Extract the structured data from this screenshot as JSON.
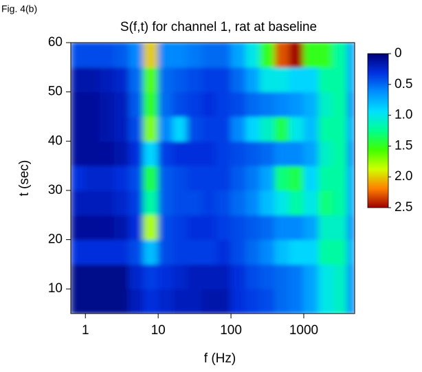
{
  "figure_label": "Fig. 4(b)",
  "chart_data": {
    "type": "heatmap",
    "title": "S(f,t) for channel 1, rat at baseline",
    "x_label": "f (Hz)",
    "y_label": "t (sec)",
    "x_scale": "log",
    "xlim": [
      0.63,
      5000
    ],
    "xticks": [
      1,
      10,
      100,
      1000
    ],
    "ylim": [
      5,
      60
    ],
    "yticks": [
      10,
      20,
      30,
      40,
      50,
      60
    ],
    "zlim": [
      0,
      2.5
    ],
    "zticks": [
      0,
      0.5,
      {
        "value": 1,
        "label": "1.0"
      },
      1.5,
      {
        "value": 2,
        "label": "2.0"
      },
      2.5
    ],
    "colormap": [
      "#00007a",
      "#0030e0",
      "#0090ff",
      "#00e0ff",
      "#00ff90",
      "#40ff00",
      "#d0ff00",
      "#ff8000",
      "#a00000"
    ],
    "x_edges": [
      0.63,
      1,
      1.6,
      2.5,
      4,
      6.3,
      10,
      16,
      25,
      40,
      63,
      100,
      160,
      250,
      400,
      630,
      1000,
      1600,
      2500,
      4000,
      5000
    ],
    "y_edges": [
      5,
      10,
      15,
      20,
      25,
      30,
      35,
      40,
      45,
      50,
      55,
      60
    ],
    "z": [
      [
        0.05,
        0.05,
        0.05,
        0.05,
        0.2,
        0.3,
        0.25,
        0.2,
        0.2,
        0.15,
        0.15,
        0.3,
        0.35,
        0.4,
        0.5,
        0.55,
        0.7,
        1.0,
        1.1,
        0.6
      ],
      [
        0.05,
        0.05,
        0.05,
        0.05,
        0.25,
        0.35,
        0.3,
        0.25,
        0.2,
        0.2,
        0.2,
        0.3,
        0.4,
        0.45,
        0.5,
        0.55,
        0.7,
        1.0,
        1.1,
        0.6
      ],
      [
        0.3,
        0.3,
        0.3,
        0.3,
        0.4,
        0.8,
        0.4,
        0.35,
        0.35,
        0.35,
        0.3,
        0.4,
        0.5,
        0.6,
        0.8,
        0.9,
        0.9,
        1.2,
        1.2,
        0.7
      ],
      [
        0.1,
        0.1,
        0.1,
        0.15,
        0.3,
        1.8,
        0.4,
        0.35,
        0.3,
        0.3,
        0.35,
        0.4,
        0.45,
        0.5,
        0.6,
        0.6,
        0.7,
        1.1,
        1.1,
        0.6
      ],
      [
        0.2,
        0.2,
        0.2,
        0.25,
        0.35,
        1.2,
        0.45,
        0.4,
        0.4,
        0.35,
        0.4,
        0.5,
        0.6,
        0.8,
        1.0,
        1.2,
        1.0,
        1.3,
        1.2,
        0.7
      ],
      [
        0.3,
        0.25,
        0.25,
        0.3,
        0.4,
        1.4,
        0.45,
        0.4,
        0.35,
        0.35,
        0.35,
        0.45,
        0.55,
        0.7,
        1.3,
        1.4,
        0.9,
        1.2,
        1.2,
        0.7
      ],
      [
        0.1,
        0.1,
        0.1,
        0.15,
        0.3,
        0.9,
        0.35,
        0.3,
        0.3,
        0.3,
        0.35,
        0.4,
        0.45,
        0.5,
        0.6,
        0.6,
        0.7,
        1.1,
        1.2,
        0.6
      ],
      [
        0.1,
        0.1,
        0.15,
        0.2,
        0.4,
        1.7,
        0.6,
        0.9,
        0.4,
        0.35,
        0.35,
        0.6,
        0.9,
        1.1,
        1.4,
        1.0,
        0.8,
        1.2,
        1.2,
        0.7
      ],
      [
        0.1,
        0.1,
        0.15,
        0.2,
        0.45,
        1.5,
        0.5,
        0.4,
        0.35,
        0.3,
        0.35,
        0.4,
        0.5,
        0.55,
        0.6,
        0.65,
        0.75,
        1.1,
        1.2,
        0.6
      ],
      [
        0.15,
        0.15,
        0.2,
        0.25,
        0.5,
        1.6,
        0.5,
        0.45,
        0.4,
        0.35,
        0.35,
        0.5,
        0.7,
        1.0,
        1.0,
        0.9,
        0.9,
        1.2,
        1.2,
        0.7
      ],
      [
        0.4,
        0.4,
        0.4,
        0.45,
        0.6,
        2.0,
        0.6,
        0.6,
        0.55,
        0.5,
        0.5,
        0.7,
        1.0,
        1.5,
        2.3,
        2.5,
        1.5,
        1.5,
        1.2,
        0.7
      ]
    ]
  }
}
